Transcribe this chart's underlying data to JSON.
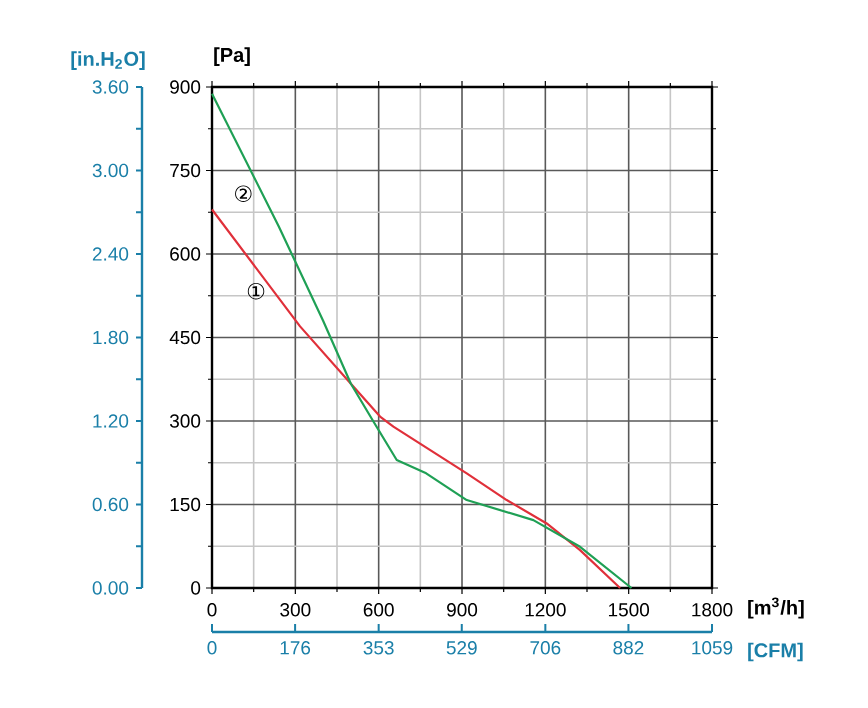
{
  "chart_data": {
    "type": "line",
    "xlabel": "[m$^{3}$/h]",
    "ylabel": "[Pa]",
    "y2label": "[in.H$_{2}$O]",
    "x2label": "[CFM]",
    "xlim": [
      0,
      1800
    ],
    "xticks": [
      0,
      300,
      600,
      900,
      1200,
      1500,
      1800
    ],
    "ylim": [
      0,
      900
    ],
    "yticks": [
      0,
      150,
      300,
      450,
      600,
      750,
      900
    ],
    "y2lim": [
      0,
      3.6
    ],
    "y2ticks": [
      {
        "value": 0,
        "label": "0.00"
      },
      {
        "value": 0.6,
        "label": "0.60"
      },
      {
        "value": 1.2,
        "label": "1.20"
      },
      {
        "value": 1.8,
        "label": "1.80"
      },
      {
        "value": 2.4,
        "label": "2.40"
      },
      {
        "value": 3.0,
        "label": "3.00"
      },
      {
        "value": 3.6,
        "label": "3.60"
      }
    ],
    "x2lim": [
      0,
      1059
    ],
    "x2ticks": [
      0,
      176,
      353,
      529,
      706,
      882,
      1059
    ],
    "grid": true,
    "line_style": "solid",
    "marker": "none",
    "series": [
      {
        "color": "#e0303a",
        "x": [
          0,
          317,
          500,
          605,
          653,
          917,
          1061,
          1205,
          1325,
          1469
        ],
        "values": [
          680,
          470,
          367,
          308,
          290,
          206,
          158,
          116,
          68,
          0
        ]
      },
      {
        "color": "#1fa055",
        "x": [
          0,
          240,
          400,
          500,
          580,
          665,
          771,
          917,
          1157,
          1325,
          1510
        ],
        "values": [
          888,
          650,
          480,
          367,
          300,
          230,
          206,
          158,
          122,
          74,
          0
        ]
      }
    ],
    "annotations": [
      "①",
      "②"
    ]
  }
}
